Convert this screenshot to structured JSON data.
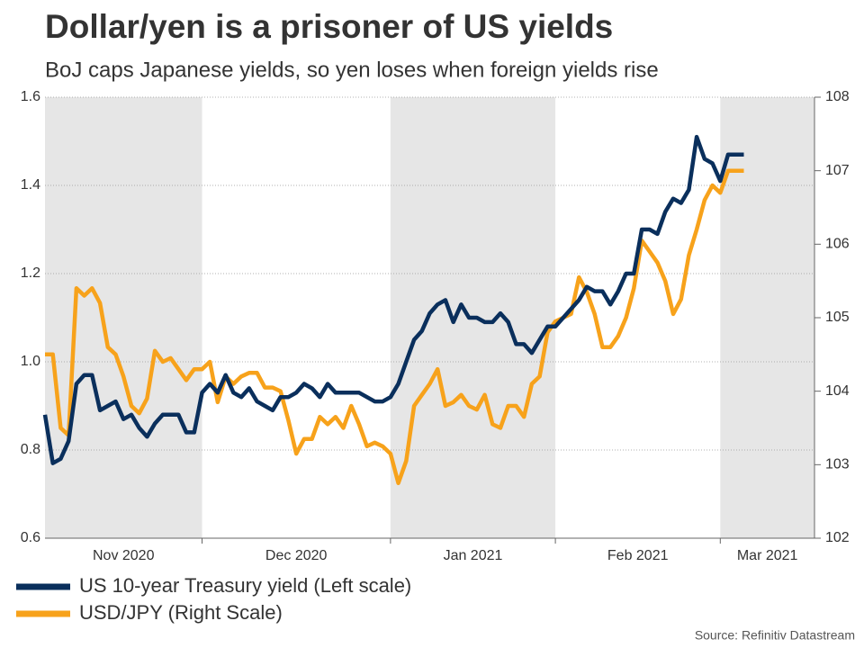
{
  "chart_data": {
    "type": "line",
    "title": "Dollar/yen is a prisoner of US yields",
    "subtitle": "BoJ caps Japanese yields, so yen loses when foreign yields rise",
    "source": "Source: Refinitiv Datastream",
    "categories": [
      "Nov 2020",
      null,
      null,
      null,
      null,
      null,
      null,
      null,
      null,
      null,
      null,
      null,
      null,
      null,
      null,
      null,
      null,
      null,
      null,
      null,
      "Dec 2020",
      null,
      null,
      null,
      null,
      null,
      null,
      null,
      null,
      null,
      null,
      null,
      null,
      null,
      null,
      null,
      null,
      null,
      null,
      null,
      null,
      null,
      null,
      null,
      "Jan 2021",
      null,
      null,
      null,
      null,
      null,
      null,
      null,
      null,
      null,
      null,
      null,
      null,
      null,
      null,
      null,
      null,
      null,
      null,
      null,
      null,
      "Feb 2021",
      null,
      null,
      null,
      null,
      null,
      null,
      null,
      null,
      null,
      null,
      null,
      null,
      null,
      null,
      null,
      null,
      null,
      null,
      null,
      null,
      "Mar 2021",
      null,
      null,
      null,
      null,
      null,
      null,
      null,
      null,
      null,
      null,
      null,
      null
    ],
    "band_color": "#e6e6e6",
    "grid": true,
    "ylim": [
      0.6,
      1.6
    ],
    "yticks": [
      {
        "value": 0.6,
        "label": "0.6"
      },
      {
        "value": 0.8,
        "label": "0.8"
      },
      {
        "value": 1.0,
        "label": "1.0"
      },
      {
        "value": 1.2,
        "label": "1.2"
      },
      {
        "value": 1.4,
        "label": "1.4"
      },
      {
        "value": 1.6,
        "label": "1.6"
      }
    ],
    "y2lim": [
      102,
      108
    ],
    "y2ticks": [
      102,
      103,
      104,
      105,
      106,
      107,
      108
    ],
    "series": [
      {
        "name": "US 10-year Treasury yield (Left scale)",
        "color": "#0a2f5c",
        "values": [
          0.88,
          0.77,
          0.78,
          0.82,
          0.95,
          0.97,
          0.97,
          0.89,
          0.9,
          0.91,
          0.87,
          0.88,
          0.85,
          0.83,
          0.86,
          0.88,
          0.88,
          0.88,
          0.84,
          0.84,
          0.93,
          0.95,
          0.93,
          0.97,
          0.93,
          0.92,
          0.94,
          0.91,
          0.9,
          0.89,
          0.92,
          0.92,
          0.93,
          0.95,
          0.94,
          0.92,
          0.95,
          0.93,
          0.93,
          0.93,
          0.93,
          0.92,
          0.91,
          0.91,
          0.92,
          0.95,
          1.0,
          1.05,
          1.07,
          1.11,
          1.13,
          1.14,
          1.09,
          1.13,
          1.1,
          1.1,
          1.09,
          1.09,
          1.11,
          1.09,
          1.04,
          1.04,
          1.02,
          1.05,
          1.08,
          1.08,
          1.1,
          1.12,
          1.14,
          1.17,
          1.16,
          1.16,
          1.13,
          1.16,
          1.2,
          1.2,
          1.3,
          1.3,
          1.29,
          1.34,
          1.37,
          1.36,
          1.39,
          1.51,
          1.46,
          1.45,
          1.41,
          1.47,
          1.47,
          1.47,
          null,
          null,
          null,
          null,
          null,
          null,
          null,
          null,
          null
        ]
      },
      {
        "name": "USD/JPY (Right Scale)",
        "color": "#f7a21b",
        "axis": "y2",
        "values": [
          104.5,
          104.5,
          103.5,
          103.4,
          105.4,
          105.3,
          105.4,
          105.2,
          104.6,
          104.5,
          104.2,
          103.8,
          103.7,
          103.9,
          104.55,
          104.4,
          104.45,
          104.3,
          104.15,
          104.3,
          104.3,
          104.4,
          103.85,
          104.2,
          104.1,
          104.2,
          104.25,
          104.25,
          104.05,
          104.05,
          104.0,
          103.6,
          103.15,
          103.35,
          103.35,
          103.65,
          103.55,
          103.65,
          103.5,
          103.8,
          103.55,
          103.25,
          103.3,
          103.25,
          103.15,
          102.75,
          103.05,
          103.8,
          103.95,
          104.1,
          104.3,
          103.8,
          103.85,
          103.95,
          103.8,
          103.75,
          103.95,
          103.55,
          103.5,
          103.8,
          103.8,
          103.65,
          104.1,
          104.2,
          104.8,
          104.95,
          105.0,
          105.05,
          105.55,
          105.35,
          105.05,
          104.6,
          104.6,
          104.75,
          105.0,
          105.4,
          106.05,
          105.9,
          105.75,
          105.5,
          105.05,
          105.25,
          105.85,
          106.2,
          106.6,
          106.8,
          106.7,
          107.0,
          107.0,
          107.0,
          null,
          null,
          null,
          null,
          null,
          null,
          null,
          null,
          null
        ]
      }
    ]
  }
}
